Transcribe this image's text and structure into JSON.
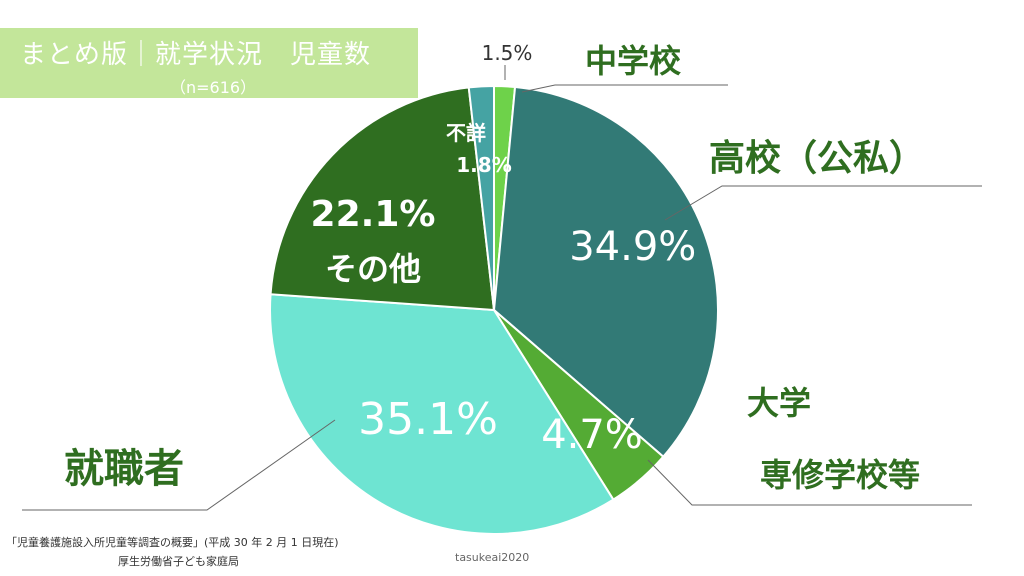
{
  "header": {
    "title": "まとめ版｜就学状況　児童数",
    "subtitle": "（n=616）"
  },
  "footer": {
    "source_line1": "「児童養護施設入所児童等調査の概要」(平成 30 年 2 月 1 日現在)",
    "source_line2": "厚生労働省子ども家庭局",
    "credit": "tasukeai2020"
  },
  "chart_data": {
    "type": "pie",
    "slices": [
      {
        "name": "中学校",
        "value": 1.5,
        "label": "1.5%",
        "color": "#6ed24a"
      },
      {
        "name": "高校（公私）",
        "value": 34.9,
        "label": "34.9%",
        "color": "#327a76"
      },
      {
        "name": "大学 専修学校等",
        "value": 4.7,
        "label": "4.7%",
        "color": "#54ab34"
      },
      {
        "name": "就職者",
        "value": 35.1,
        "label": "35.1%",
        "color": "#6ee4d2"
      },
      {
        "name": "その他",
        "value": 22.1,
        "label": "22.1%",
        "color": "#2f6e20"
      },
      {
        "name": "不詳",
        "value": 1.8,
        "label": "1.8%",
        "color": "#45a3a3"
      }
    ]
  }
}
